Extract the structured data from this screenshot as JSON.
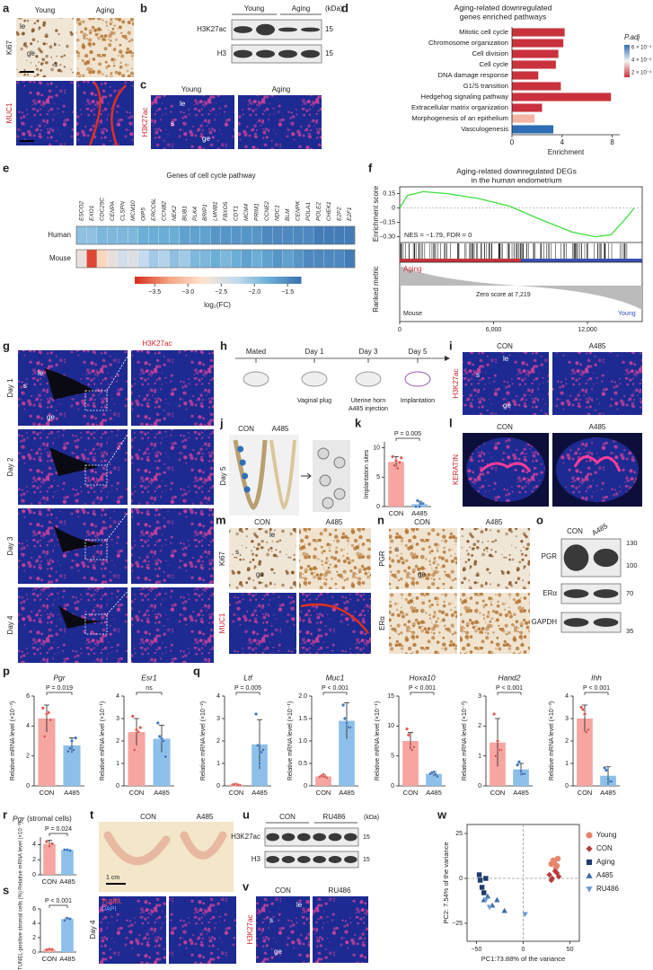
{
  "group_colors": [
    "#f6a5a0",
    "#8cc0ea"
  ],
  "a": {
    "letter": "a",
    "columns": [
      "Young",
      "Aging"
    ],
    "stains": [
      "Ki67",
      "MUC1"
    ],
    "regions": [
      "le",
      "ge",
      "s"
    ]
  },
  "b": {
    "letter": "b",
    "groups": [
      "Young",
      "Aging"
    ],
    "unit": "(kDa)",
    "blots": [
      {
        "name": "H3K27ac",
        "size": "15"
      },
      {
        "name": "H3",
        "size": "15"
      }
    ]
  },
  "c": {
    "letter": "c",
    "columns": [
      "Young",
      "Aging"
    ],
    "stain": "H3K27ac",
    "regions": [
      "le",
      "s",
      "ge"
    ]
  },
  "d": {
    "letter": "d",
    "title": [
      "Aging-related downregulated",
      "genes enriched pathways"
    ],
    "chart": {
      "type": "bar",
      "categories": [
        "Mitotic cell cycle",
        "Chromosome organization",
        "Cell division",
        "Cell cycle",
        "DNA damage response",
        "G1/S transition",
        "Hedgehog signaling pathway",
        "Extracellular matrix organization",
        "Morphogenesis of an epithelium",
        "Vasculogenesis"
      ],
      "values": [
        4.2,
        4.1,
        3.7,
        3.5,
        2.1,
        3.9,
        7.9,
        2.4,
        1.8,
        3.3
      ],
      "colors": [
        "#c9323c",
        "#c9323c",
        "#c9323c",
        "#c9323c",
        "#c9323c",
        "#c9323c",
        "#c9323c",
        "#c9323c",
        "#f5b5a5",
        "#2e6db4"
      ],
      "xlim": [
        0,
        8.6
      ],
      "xticks": [
        0,
        4,
        8
      ],
      "xlabel": "Enrichment",
      "legend_title": "P.adj",
      "legend_labels": [
        "6 × 10⁻⁴",
        "4 × 10⁻⁴",
        "2 × 10⁻⁴"
      ],
      "legend_colors": [
        "#2e6db4",
        "#f4f4f4",
        "#c9323c"
      ]
    }
  },
  "e": {
    "letter": "e",
    "title": "Genes of cell cycle pathway",
    "genes": [
      "ESCO2",
      "EXO1",
      "CDC25C",
      "CENPA",
      "CLSPN",
      "MCM10",
      "OIP5",
      "ERCC6L",
      "CCNB2",
      "NEK2",
      "BUB1",
      "PLK4",
      "BRIP1",
      "LMNB1",
      "FBXO5",
      "CDT1",
      "MCM4",
      "PRIM1",
      "CCNE2",
      "NDC1",
      "BLM",
      "CENPK",
      "POLA1",
      "POLE2",
      "CHEK1",
      "E2F2",
      "E2F1"
    ],
    "rows": [
      {
        "name": "Human",
        "values": [
          -2.0,
          -2.0,
          -1.9,
          -1.9,
          -1.9,
          -1.9,
          -1.8,
          -1.8,
          -1.8,
          -1.8,
          -1.7,
          -1.7,
          -1.7,
          -1.6,
          -1.6,
          -1.6,
          -1.6,
          -1.6,
          -1.5,
          -1.5,
          -1.5,
          -1.5,
          -1.5,
          -1.4,
          -1.4,
          -1.4,
          -1.4
        ]
      },
      {
        "name": "Mouse",
        "values": [
          -2.6,
          -3.7,
          -2.9,
          -2.6,
          -2.4,
          -2.5,
          -2.3,
          -2.1,
          -2.2,
          -2.0,
          -2.1,
          -1.9,
          -1.9,
          -1.8,
          -1.9,
          -1.8,
          -1.7,
          -1.8,
          -1.7,
          -1.6,
          -1.7,
          -1.6,
          -1.5,
          -1.5,
          -1.5,
          -1.5,
          -1.4
        ]
      }
    ],
    "clim": [
      -3.8,
      -1.3
    ],
    "colormap": [
      "#d7301f",
      "#f4a582",
      "#fde3cf",
      "#c6dbef",
      "#6baed6",
      "#3a6fb0"
    ],
    "colorbar_ticks": [
      {
        "value": -3.5,
        "label": "−3.5"
      },
      {
        "value": -3.0,
        "label": "−3.0"
      },
      {
        "value": -2.5,
        "label": "−2.5"
      },
      {
        "value": -2.0,
        "label": "−2.0"
      },
      {
        "value": -1.5,
        "label": "−1.5"
      }
    ],
    "colorbar_label": "log₂(FC)"
  },
  "f": {
    "letter": "f",
    "title": [
      "Aging-related downregulated DEGs",
      "in the human endometrium"
    ],
    "ylabel": "Enrichment score",
    "ylabel2": "Ranked metric",
    "annotation": "NES = −1.79, FDR = 0",
    "zero_label": "Zero score at 7,219",
    "left_group": "Aging",
    "bottom_left": "Mouse",
    "bottom_right": "Young",
    "x": [
      0,
      500,
      1500,
      3000,
      5000,
      7000,
      9000,
      11000,
      12500,
      13500,
      14500,
      15000
    ],
    "es": [
      0,
      0.13,
      0.17,
      0.15,
      0.1,
      0.02,
      -0.12,
      -0.25,
      -0.3,
      -0.28,
      -0.1,
      0
    ],
    "color": "#3ee03e",
    "xlim": [
      0,
      15500
    ],
    "ylim": [
      -0.36,
      0.22
    ],
    "yticks": [
      0.15,
      0,
      {
        "value": -0.15,
        "label": "−0.15"
      },
      {
        "value": -0.3,
        "label": "−0.30"
      }
    ],
    "xticks": [
      0,
      {
        "value": 6000,
        "label": "6,000"
      },
      {
        "value": 12000,
        "label": "12,000"
      }
    ]
  },
  "g": {
    "letter": "g",
    "stain": "H3K27ac",
    "days": [
      "Day 1",
      "Day 2",
      "Day 3",
      "Day 4"
    ],
    "regions": [
      "le",
      "s",
      "ge"
    ]
  },
  "h": {
    "letter": "h",
    "steps": [
      {
        "time": "Mated"
      },
      {
        "time": "Day 1",
        "note": [
          "Vaginal plug"
        ]
      },
      {
        "time": "Day 3",
        "note": [
          "Uterine horn",
          "A485 injection"
        ]
      },
      {
        "time": "Day 5",
        "note": [
          "Implantation"
        ]
      }
    ]
  },
  "i": {
    "letter": "i",
    "columns": [
      "CON",
      "A485"
    ],
    "stain": "H3K27ac",
    "regions": [
      "le",
      "s",
      "ge"
    ]
  },
  "j": {
    "letter": "j",
    "columns": [
      "CON",
      "A485"
    ],
    "day": "Day 5"
  },
  "k": {
    "letter": "k",
    "chart": {
      "ylabel": "Implantation sites",
      "categories": [
        "CON",
        "A485"
      ],
      "values": [
        7.6,
        0.4
      ],
      "errors": [
        0.9,
        0.5
      ],
      "points": [
        [
          8.5,
          7.8,
          7.5,
          7,
          6.5,
          8.3
        ],
        [
          0,
          0,
          0.5,
          1,
          0.5
        ]
      ],
      "ylim": [
        0,
        11
      ],
      "yticks": [
        0,
        5,
        10
      ],
      "p_label": "P = 0.005"
    }
  },
  "l": {
    "letter": "l",
    "columns": [
      "CON",
      "A485"
    ],
    "stain": "KERATIN"
  },
  "m": {
    "letter": "m",
    "columns": [
      "CON",
      "A485"
    ],
    "stains": [
      "Ki67",
      "MUC1"
    ],
    "regions": [
      "le",
      "s",
      "ge"
    ]
  },
  "n": {
    "letter": "n",
    "columns": [
      "CON",
      "A485"
    ],
    "stains": [
      "PGR",
      "ERα"
    ],
    "regions": [
      "s",
      "ge"
    ]
  },
  "o": {
    "letter": "o",
    "columns": [
      "CON",
      "A485"
    ],
    "blots": [
      {
        "name": "PGR",
        "sizes": [
          "130",
          "100"
        ]
      },
      {
        "name": "ERα",
        "sizes": [
          "70"
        ]
      },
      {
        "name": "GAPDH",
        "sizes": [
          "35"
        ]
      }
    ]
  },
  "p": {
    "letter": "p",
    "charts": [
      {
        "gene": "Pgr",
        "ylabel": "Relative mRNA level (×10⁻³)",
        "categories": [
          "CON",
          "A485"
        ],
        "values": [
          4.5,
          2.7
        ],
        "errors": [
          0.9,
          0.5
        ],
        "points": [
          [
            5.2,
            4.8,
            4.4,
            3.3,
            4.9
          ],
          [
            2.3,
            3.0,
            3.2,
            2.5,
            2.4
          ]
        ],
        "ylim": [
          0,
          6
        ],
        "yticks": [
          0,
          2,
          4,
          6
        ],
        "p_label": "P = 0.019"
      },
      {
        "gene": "Esr1",
        "ylabel": "Relative mRNA level (×10⁻¹)",
        "categories": [
          "CON",
          "A485"
        ],
        "values": [
          2.4,
          2.1
        ],
        "errors": [
          0.6,
          0.6
        ],
        "points": [
          [
            3.1,
            2.5,
            2.6,
            1.6,
            2.4
          ],
          [
            2.8,
            2.1,
            1.3,
            2.2,
            2.0
          ]
        ],
        "ylim": [
          0,
          4
        ],
        "yticks": [
          0,
          1,
          2,
          3,
          4
        ],
        "p_label": "ns"
      }
    ]
  },
  "q": {
    "letter": "q",
    "charts": [
      {
        "gene": "Ltf",
        "ylabel": "Relative mRNA level (×10⁻²)",
        "categories": [
          "CON",
          "A485"
        ],
        "values": [
          0.05,
          1.85
        ],
        "errors": [
          0.02,
          1.1
        ],
        "points": [
          [
            0.05,
            0.08,
            0.03,
            0.06,
            0.04
          ],
          [
            3.2,
            1.0,
            1.6,
            1.8,
            1.5
          ]
        ],
        "ylim": [
          0,
          4
        ],
        "yticks": [
          0,
          1,
          2,
          3,
          4
        ],
        "p_label": "P = 0.005"
      },
      {
        "gene": "Muc1",
        "ylabel": "Relative mRNA level (×10⁻¹)",
        "categories": [
          "CON",
          "A485"
        ],
        "values": [
          0.21,
          1.45
        ],
        "errors": [
          0.03,
          0.4
        ],
        "points": [
          [
            0.2,
            0.25,
            0.18,
            0.22,
            0.2
          ],
          [
            1.8,
            1.4,
            1.3,
            1.5,
            1.3
          ]
        ],
        "ylim": [
          0,
          2
        ],
        "yticks": [
          0,
          0.5,
          {
            "value": 1,
            "label": "1.0"
          },
          1.5,
          {
            "value": 2,
            "label": "2.0"
          }
        ],
        "p_label": "P < 0.001"
      },
      {
        "gene": "Hoxa10",
        "ylabel": "Relative mRNA level (×10⁻¹)",
        "categories": [
          "CON",
          "A485"
        ],
        "values": [
          7.5,
          2.0
        ],
        "errors": [
          1.4,
          0.4
        ],
        "points": [
          [
            9.5,
            7,
            6.5,
            8.5,
            6
          ],
          [
            2,
            2.3,
            1.6,
            2.2,
            1.9
          ]
        ],
        "ylim": [
          0,
          15
        ],
        "yticks": [
          0,
          5,
          10,
          15
        ],
        "p_label": "P < 0.001"
      },
      {
        "gene": "Hand2",
        "ylabel": "Relative mRNA level (×10⁻³)",
        "categories": [
          "CON",
          "A485"
        ],
        "values": [
          1.45,
          0.55
        ],
        "errors": [
          0.8,
          0.2
        ],
        "points": [
          [
            2.4,
            1.5,
            1.2,
            1.0,
            1.2
          ],
          [
            0.7,
            0.5,
            0.4,
            0.8,
            0.4
          ]
        ],
        "ylim": [
          0,
          3
        ],
        "yticks": [
          0,
          1,
          2,
          3
        ],
        "p_label": "P < 0.001"
      },
      {
        "gene": "Ihh",
        "ylabel": "Relative mRNA level (×10⁻³)",
        "categories": [
          "CON",
          "A485"
        ],
        "values": [
          3.0,
          0.45
        ],
        "errors": [
          0.6,
          0.4
        ],
        "points": [
          [
            3.5,
            3.2,
            2.5,
            3.4,
            2.4
          ],
          [
            0.8,
            0.3,
            0.2,
            0.7,
            0.2
          ]
        ],
        "ylim": [
          0,
          4
        ],
        "yticks": [
          0,
          1,
          2,
          3,
          4
        ],
        "p_label": "P < 0.001"
      }
    ]
  },
  "r": {
    "letter": "r",
    "chart": {
      "gene": "Pgr",
      "gene_note": "(stromal cells)",
      "ylabel": "Relative mRNA level (×10⁻³)",
      "categories": [
        "CON",
        "A485"
      ],
      "values": [
        4.1,
        3.3
      ],
      "errors": [
        0.5,
        0.05
      ],
      "points": [
        [
          4.4,
          3.8,
          4.1
        ],
        [
          3.3,
          3.3,
          3.2
        ]
      ],
      "ylim": [
        0,
        5
      ],
      "yticks": [
        0,
        2,
        4
      ],
      "p_label": "P = 0.024"
    }
  },
  "s": {
    "letter": "s",
    "chart": {
      "ylabel": "TUNEL-positive stromal cells (%)",
      "categories": [
        "CON",
        "A485"
      ],
      "values": [
        0.35,
        4.6
      ],
      "errors": [
        0.05,
        0.15
      ],
      "points": [
        [
          0.3,
          0.4,
          0.35
        ],
        [
          4.4,
          4.7,
          4.6
        ]
      ],
      "ylim": [
        0,
        6
      ],
      "yticks": [
        0,
        2,
        4,
        6
      ],
      "p_label": "P < 0.001"
    }
  },
  "t": {
    "letter": "t",
    "columns": [
      "CON",
      "A485"
    ],
    "scale": "1 cm",
    "stains": [
      "TUNEL",
      "DAPI"
    ],
    "day": "Day 4"
  },
  "u": {
    "letter": "u",
    "groups": [
      "CON",
      "RU486"
    ],
    "unit": "(kDa)",
    "blots": [
      {
        "name": "H3K27ac",
        "size": "15"
      },
      {
        "name": "H3",
        "size": "15"
      }
    ]
  },
  "v": {
    "letter": "v",
    "columns": [
      "CON",
      "RU486"
    ],
    "stain": "H3K27ac",
    "regions": [
      "le",
      "s",
      "ge"
    ]
  },
  "w": {
    "letter": "w",
    "type": "scatter",
    "xlabel": "PC1:73.88% of the variance",
    "ylabel": "PC2: 7.54% of the variance",
    "xlim": [
      -60,
      60
    ],
    "ylim": [
      -35,
      30
    ],
    "xticks": [
      {
        "value": -50,
        "label": "−50"
      },
      0,
      50
    ],
    "yticks": [
      {
        "value": -25,
        "label": "−25"
      },
      0,
      25
    ],
    "series": [
      {
        "name": "Young",
        "color": "#e8866a",
        "marker": "circle",
        "x": [
          30,
          32,
          35,
          37,
          33,
          36
        ],
        "y": [
          8,
          10,
          6,
          11,
          9,
          7
        ]
      },
      {
        "name": "CON",
        "color": "#b83b3b",
        "marker": "diamond",
        "x": [
          28,
          31,
          34,
          38,
          30,
          36
        ],
        "y": [
          2,
          0,
          4,
          1,
          -1,
          3
        ]
      },
      {
        "name": "Aging",
        "color": "#1f3b6e",
        "marker": "square",
        "x": [
          -47,
          -44,
          -42,
          -46,
          -40
        ],
        "y": [
          2,
          -5,
          -8,
          -1,
          0
        ]
      },
      {
        "name": "A485",
        "color": "#3b6ea8",
        "marker": "triangle",
        "x": [
          -38,
          -33,
          -28,
          -20,
          -42
        ],
        "y": [
          -10,
          -15,
          -12,
          -18,
          -12
        ]
      },
      {
        "name": "RU486",
        "color": "#6f9bd1",
        "marker": "triangle-down",
        "x": [
          -40,
          -36,
          2
        ],
        "y": [
          -12,
          -16,
          -20
        ]
      }
    ]
  }
}
